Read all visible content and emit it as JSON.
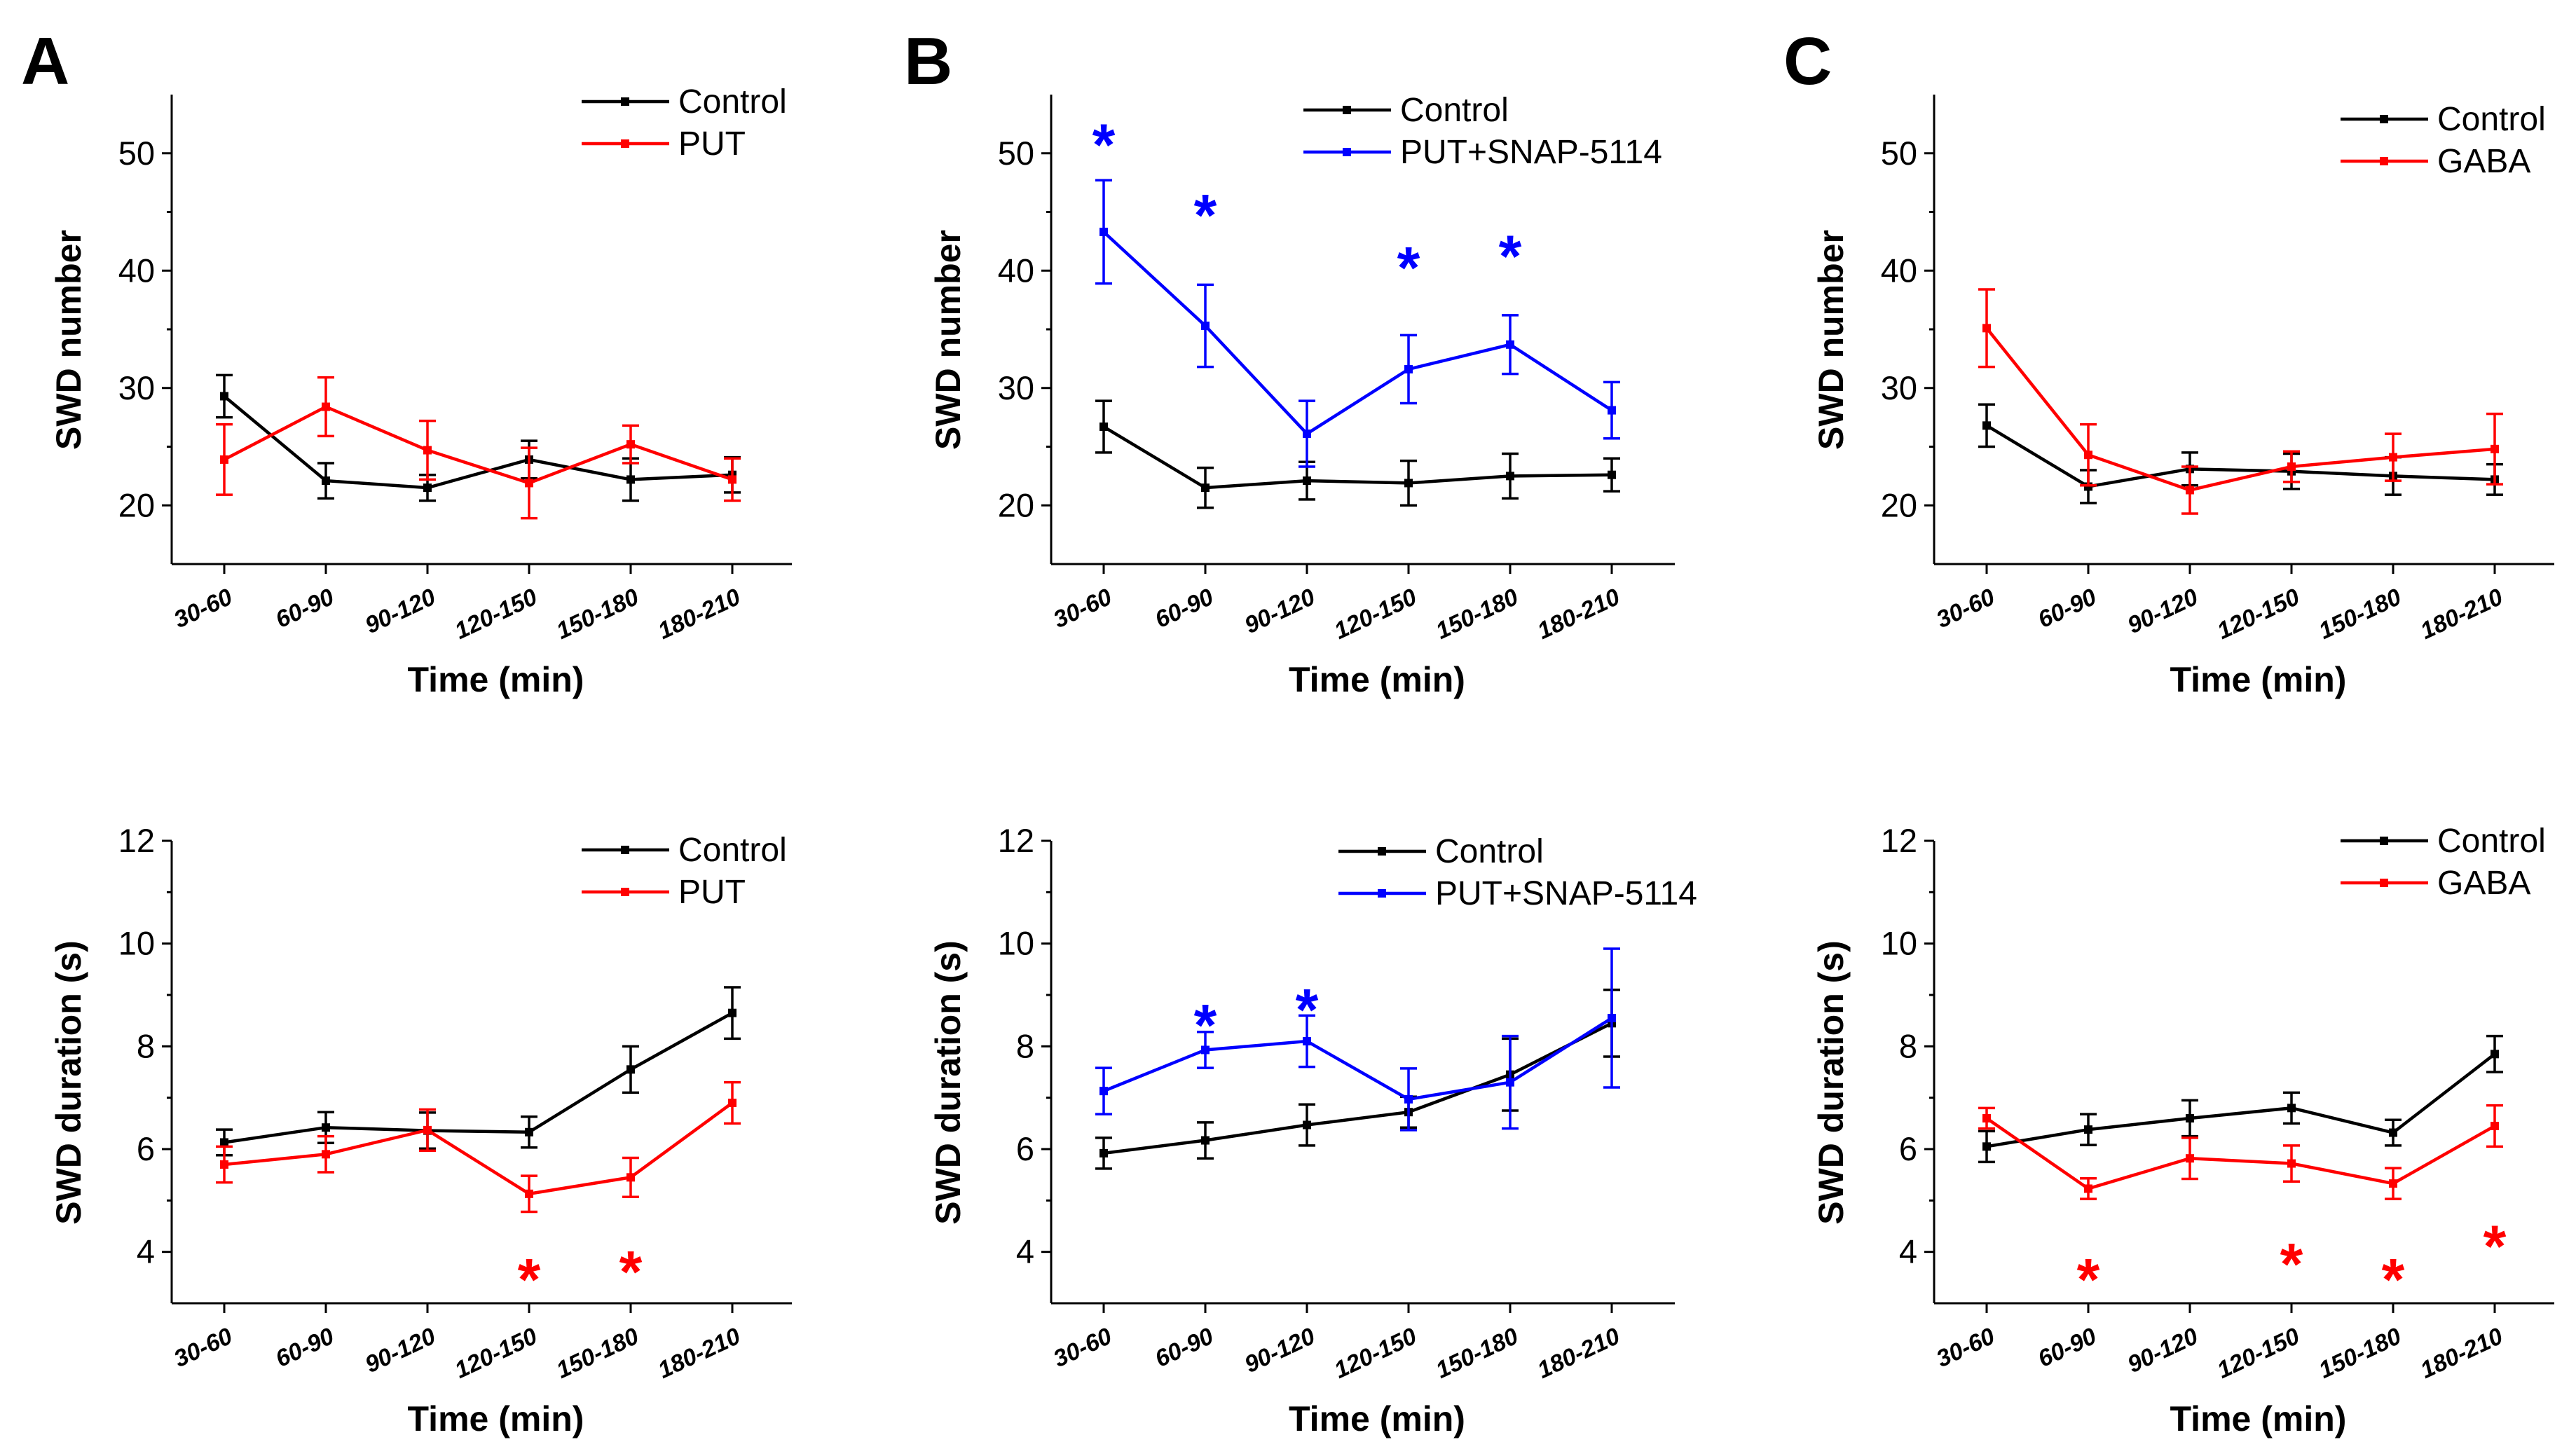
{
  "panel_letters": [
    "A",
    "B",
    "C"
  ],
  "colors": {
    "control": "#000000",
    "red": "#ff0000",
    "blue": "#0000ff"
  },
  "chart_data": [
    {
      "id": "A-top",
      "panel": "A",
      "type": "line",
      "categories": [
        "30-60",
        "60-90",
        "90-120",
        "120-150",
        "150-180",
        "180-210"
      ],
      "xlabel": "Time (min)",
      "ylabel": "SWD number",
      "ylim": [
        15,
        55
      ],
      "yticks": [
        20,
        30,
        40,
        50
      ],
      "legend_position": "top-right",
      "series": [
        {
          "name": "Control",
          "color": "#000000",
          "values": [
            29.3,
            22.1,
            21.5,
            23.9,
            22.2,
            22.6
          ],
          "errors": [
            1.8,
            1.5,
            1.1,
            1.6,
            1.8,
            1.5
          ]
        },
        {
          "name": "PUT",
          "color": "#ff0000",
          "values": [
            23.9,
            28.4,
            24.7,
            21.9,
            25.2,
            22.2
          ],
          "errors": [
            3.0,
            2.5,
            2.5,
            3.0,
            1.6,
            1.8
          ]
        }
      ],
      "significance": []
    },
    {
      "id": "B-top",
      "panel": "B",
      "type": "line",
      "categories": [
        "30-60",
        "60-90",
        "90-120",
        "120-150",
        "150-180",
        "180-210"
      ],
      "xlabel": "Time (min)",
      "ylabel": "SWD number",
      "ylim": [
        15,
        55
      ],
      "yticks": [
        20,
        30,
        40,
        50
      ],
      "legend_position": "top-center",
      "series": [
        {
          "name": "Control",
          "color": "#000000",
          "values": [
            26.7,
            21.5,
            22.1,
            21.9,
            22.5,
            22.6
          ],
          "errors": [
            2.2,
            1.7,
            1.6,
            1.9,
            1.9,
            1.4
          ]
        },
        {
          "name": "PUT+SNAP-5114",
          "color": "#0000ff",
          "values": [
            43.3,
            35.3,
            26.1,
            31.6,
            33.7,
            28.1
          ],
          "errors": [
            4.4,
            3.5,
            2.8,
            2.9,
            2.5,
            2.4
          ]
        }
      ],
      "significance": [
        {
          "category": "30-60",
          "label": "*",
          "color": "#0000ff",
          "y": 52
        },
        {
          "category": "60-90",
          "label": "*",
          "color": "#0000ff",
          "y": 46
        },
        {
          "category": "120-150",
          "label": "*",
          "color": "#0000ff",
          "y": 41.5
        },
        {
          "category": "150-180",
          "label": "*",
          "color": "#0000ff",
          "y": 42.5
        }
      ]
    },
    {
      "id": "C-top",
      "panel": "C",
      "type": "line",
      "categories": [
        "30-60",
        "60-90",
        "90-120",
        "120-150",
        "150-180",
        "180-210"
      ],
      "xlabel": "Time (min)",
      "ylabel": "SWD number",
      "ylim": [
        15,
        55
      ],
      "yticks": [
        20,
        30,
        40,
        50
      ],
      "legend_position": "top-right",
      "series": [
        {
          "name": "Control",
          "color": "#000000",
          "values": [
            26.8,
            21.6,
            23.1,
            22.9,
            22.5,
            22.2
          ],
          "errors": [
            1.8,
            1.4,
            1.4,
            1.5,
            1.6,
            1.3
          ]
        },
        {
          "name": "GABA",
          "color": "#ff0000",
          "values": [
            35.1,
            24.3,
            21.3,
            23.3,
            24.1,
            24.8
          ],
          "errors": [
            3.3,
            2.6,
            2.0,
            1.3,
            2.0,
            3.0
          ]
        }
      ],
      "significance": []
    },
    {
      "id": "A-bottom",
      "panel": "A",
      "type": "line",
      "categories": [
        "30-60",
        "60-90",
        "90-120",
        "120-150",
        "150-180",
        "180-210"
      ],
      "xlabel": "Time (min)",
      "ylabel": "SWD duration (s)",
      "ylim": [
        3,
        12
      ],
      "yticks": [
        4,
        6,
        8,
        10,
        12
      ],
      "legend_position": "top-right",
      "series": [
        {
          "name": "Control",
          "color": "#000000",
          "values": [
            6.13,
            6.42,
            6.36,
            6.33,
            7.55,
            8.65
          ],
          "errors": [
            0.25,
            0.3,
            0.35,
            0.3,
            0.45,
            0.5
          ]
        },
        {
          "name": "PUT",
          "color": "#ff0000",
          "values": [
            5.7,
            5.9,
            6.37,
            5.13,
            5.45,
            6.9
          ],
          "errors": [
            0.35,
            0.35,
            0.4,
            0.35,
            0.38,
            0.4
          ]
        }
      ],
      "significance": [
        {
          "category": "120-150",
          "label": "*",
          "color": "#ff0000",
          "y": 3.75
        },
        {
          "category": "150-180",
          "label": "*",
          "color": "#ff0000",
          "y": 3.9
        }
      ]
    },
    {
      "id": "B-bottom",
      "panel": "B",
      "type": "line",
      "categories": [
        "30-60",
        "60-90",
        "90-120",
        "120-150",
        "150-180",
        "180-210"
      ],
      "xlabel": "Time (min)",
      "ylabel": "SWD duration (s)",
      "ylim": [
        3,
        12
      ],
      "yticks": [
        4,
        6,
        8,
        10,
        12
      ],
      "legend_position": "top-right",
      "series": [
        {
          "name": "Control",
          "color": "#000000",
          "values": [
            5.92,
            6.17,
            6.47,
            6.72,
            7.45,
            8.45
          ],
          "errors": [
            0.3,
            0.35,
            0.4,
            0.3,
            0.7,
            0.65
          ]
        },
        {
          "name": "PUT+SNAP-5114",
          "color": "#0000ff",
          "values": [
            7.13,
            7.93,
            8.1,
            6.97,
            7.3,
            8.55
          ],
          "errors": [
            0.45,
            0.35,
            0.5,
            0.6,
            0.9,
            1.35
          ]
        }
      ],
      "significance": [
        {
          "category": "60-90",
          "label": "*",
          "color": "#0000ff",
          "y": 8.7
        },
        {
          "category": "90-120",
          "label": "*",
          "color": "#0000ff",
          "y": 9.0
        }
      ]
    },
    {
      "id": "C-bottom",
      "panel": "C",
      "type": "line",
      "categories": [
        "30-60",
        "60-90",
        "90-120",
        "120-150",
        "150-180",
        "180-210"
      ],
      "xlabel": "Time (min)",
      "ylabel": "SWD duration (s)",
      "ylim": [
        3,
        12
      ],
      "yticks": [
        4,
        6,
        8,
        10,
        12
      ],
      "legend_position": "top-right",
      "series": [
        {
          "name": "Control",
          "color": "#000000",
          "values": [
            6.05,
            6.38,
            6.6,
            6.8,
            6.32,
            7.85
          ],
          "errors": [
            0.3,
            0.3,
            0.35,
            0.3,
            0.25,
            0.35
          ]
        },
        {
          "name": "GABA",
          "color": "#ff0000",
          "values": [
            6.6,
            5.23,
            5.82,
            5.72,
            5.33,
            6.45
          ],
          "errors": [
            0.2,
            0.2,
            0.4,
            0.35,
            0.3,
            0.4
          ]
        }
      ],
      "significance": [
        {
          "category": "60-90",
          "label": "*",
          "color": "#ff0000",
          "y": 3.75
        },
        {
          "category": "120-150",
          "label": "*",
          "color": "#ff0000",
          "y": 4.05
        },
        {
          "category": "150-180",
          "label": "*",
          "color": "#ff0000",
          "y": 3.75
        },
        {
          "category": "180-210",
          "label": "*",
          "color": "#ff0000",
          "y": 4.4
        }
      ]
    }
  ]
}
